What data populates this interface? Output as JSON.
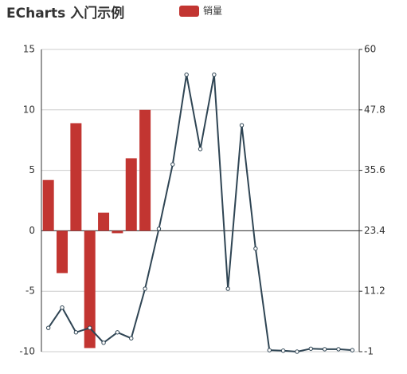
{
  "chart_data": {
    "type": "bar",
    "title": "ECharts 入门示例",
    "categories": [
      null,
      null,
      null,
      null,
      null,
      null,
      null,
      null,
      null,
      null,
      null,
      null,
      null,
      null,
      null,
      null,
      null,
      null,
      null,
      null,
      null,
      null,
      null
    ],
    "series": [
      {
        "name": "销量",
        "type": "bar",
        "color": "#c23531",
        "values": [
          4.2,
          -3.5,
          8.9,
          -9.7,
          1.5,
          -0.2,
          6.0,
          10.0,
          null,
          null,
          null,
          null,
          null,
          null,
          null,
          null,
          null,
          null,
          null,
          null,
          null,
          null,
          null
        ]
      },
      {
        "type": "line",
        "axis": "y2",
        "color": "#2f4554",
        "values": [
          3.8,
          7.9,
          2.9,
          3.8,
          0.8,
          2.9,
          1.7,
          11.7,
          23.8,
          36.8,
          54.9,
          39.9,
          54.9,
          11.7,
          44.7,
          19.8,
          -0.7,
          -0.8,
          -1,
          -0.4,
          -0.5,
          -0.5,
          -0.7
        ]
      }
    ],
    "ylim": [
      -10,
      15
    ],
    "yticks": [
      -10,
      -5,
      0,
      5,
      10,
      15
    ],
    "y2lim": [
      -1,
      60
    ],
    "y2ticks": [
      -1,
      11.2,
      23.4,
      35.6,
      47.8,
      60
    ],
    "grid": true,
    "legend": "top"
  }
}
